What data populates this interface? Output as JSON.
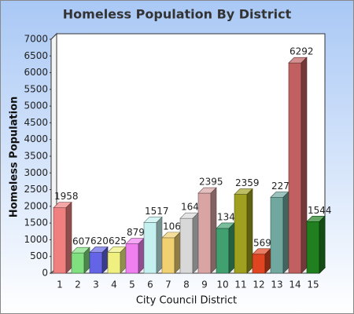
{
  "chart_data": {
    "type": "bar3d",
    "title": "Homeless Population By District",
    "x_label": "City Council District",
    "y_label": "Homeless Population",
    "categories": [
      "1",
      "2",
      "3",
      "4",
      "5",
      "6",
      "7",
      "8",
      "9",
      "10",
      "11",
      "12",
      "13",
      "14",
      "15"
    ],
    "values": [
      1958,
      607,
      620,
      625,
      879,
      1517,
      1060,
      1640,
      2395,
      1340,
      2359,
      569,
      2270,
      6292,
      1544
    ],
    "colors": [
      "#f08080",
      "#80e080",
      "#6464e6",
      "#f0f080",
      "#f080f0",
      "#c4f0f0",
      "#f0d070",
      "#d8d8d8",
      "#d8a4a4",
      "#40a070",
      "#a0a020",
      "#e04420",
      "#70a8a0",
      "#c06060",
      "#208020"
    ],
    "ylim": [
      0,
      7000
    ],
    "yticks": [
      0,
      500,
      1000,
      1500,
      2000,
      2500,
      3000,
      3500,
      4000,
      4500,
      5000,
      5500,
      6000,
      6500,
      7000
    ]
  }
}
